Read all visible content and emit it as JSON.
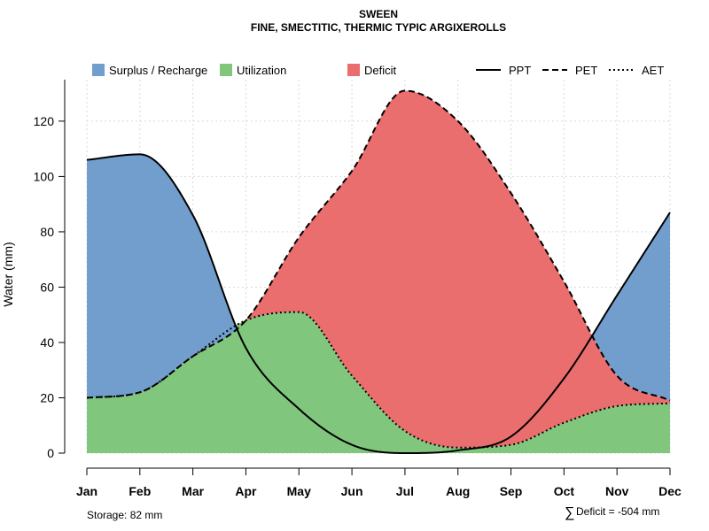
{
  "chart_data": {
    "type": "area",
    "title": "SWEEN",
    "subtitle": "FINE, SMECTITIC, THERMIC TYPIC ARGIXEROLLS",
    "ylabel": "Water (mm)",
    "xlabel": "",
    "ylim": [
      0,
      135
    ],
    "yticks": [
      0,
      20,
      40,
      60,
      80,
      100,
      120
    ],
    "categories": [
      "Jan",
      "Feb",
      "Mar",
      "Apr",
      "May",
      "Jun",
      "Jul",
      "Aug",
      "Sep",
      "Oct",
      "Nov",
      "Dec"
    ],
    "grid": true,
    "series": [
      {
        "name": "PPT",
        "style": "solid",
        "values": [
          106,
          108,
          86,
          38,
          16,
          3,
          0,
          1,
          6,
          27,
          57,
          87
        ]
      },
      {
        "name": "PET",
        "style": "dashed",
        "values": [
          20,
          22,
          35,
          48,
          78,
          102,
          131,
          120,
          94,
          62,
          28,
          19
        ]
      },
      {
        "name": "AET",
        "style": "dotted",
        "values": [
          20,
          22,
          35,
          48,
          51,
          28,
          8,
          2,
          3,
          11,
          17,
          18
        ]
      }
    ],
    "legend": {
      "areas": [
        {
          "name": "Surplus / Recharge",
          "color": "#729ECE"
        },
        {
          "name": "Utilization",
          "color": "#80C67D"
        },
        {
          "name": "Deficit",
          "color": "#EB6E6E"
        }
      ],
      "lines": [
        {
          "name": "PPT",
          "style": "solid"
        },
        {
          "name": "PET",
          "style": "dashed"
        },
        {
          "name": "AET",
          "style": "dotted"
        }
      ],
      "placement": "top"
    },
    "annotations": {
      "storage": "Storage: 82 mm",
      "deficit_symbol": "∑",
      "deficit": "Deficit = -504 mm"
    }
  }
}
